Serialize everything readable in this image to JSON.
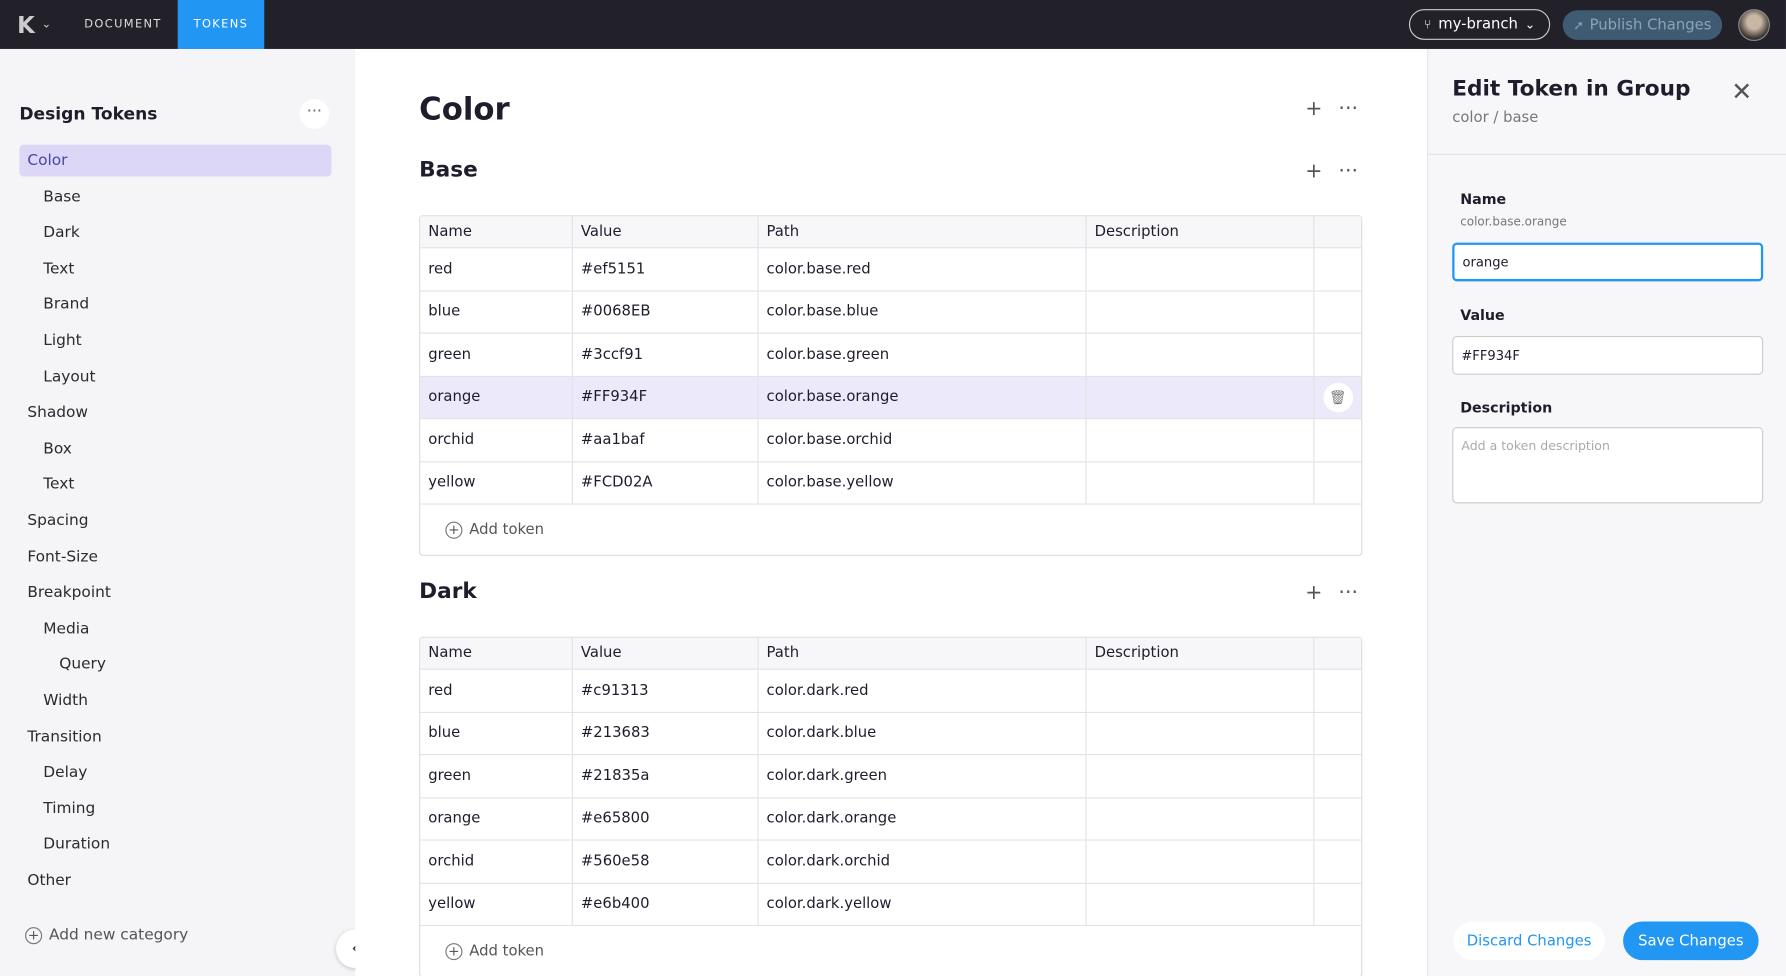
{
  "topbar": {
    "nav": [
      "DOCUMENT",
      "TOKENS"
    ],
    "active_tab": "TOKENS",
    "branch": "my-branch",
    "publish": "Publish Changes"
  },
  "sidebar": {
    "title": "Design Tokens",
    "more": "···",
    "add_category": "Add new category",
    "items": [
      {
        "label": "Color",
        "level": 0,
        "selected": true
      },
      {
        "label": "Base",
        "level": 1
      },
      {
        "label": "Dark",
        "level": 1
      },
      {
        "label": "Text",
        "level": 1
      },
      {
        "label": "Brand",
        "level": 1
      },
      {
        "label": "Light",
        "level": 1
      },
      {
        "label": "Layout",
        "level": 1
      },
      {
        "label": "Shadow",
        "level": 0
      },
      {
        "label": "Box",
        "level": 1
      },
      {
        "label": "Text",
        "level": 1
      },
      {
        "label": "Spacing",
        "level": 0
      },
      {
        "label": "Font-Size",
        "level": 0
      },
      {
        "label": "Breakpoint",
        "level": 0
      },
      {
        "label": "Media",
        "level": 1
      },
      {
        "label": "Query",
        "level": 2
      },
      {
        "label": "Width",
        "level": 1
      },
      {
        "label": "Transition",
        "level": 0
      },
      {
        "label": "Delay",
        "level": 1
      },
      {
        "label": "Timing",
        "level": 1
      },
      {
        "label": "Duration",
        "level": 1
      },
      {
        "label": "Other",
        "level": 0
      }
    ]
  },
  "main": {
    "title": "Color",
    "columns": [
      "Name",
      "Value",
      "Path",
      "Description"
    ],
    "add_token": "Add token",
    "groups": [
      {
        "title": "Base",
        "rows": [
          [
            "red",
            "#ef5151",
            "color.base.red",
            ""
          ],
          [
            "blue",
            "#0068EB",
            "color.base.blue",
            ""
          ],
          [
            "green",
            "#3ccf91",
            "color.base.green",
            ""
          ],
          [
            "orange",
            "#FF934F",
            "color.base.orange",
            ""
          ],
          [
            "orchid",
            "#aa1baf",
            "color.base.orchid",
            ""
          ],
          [
            "yellow",
            "#FCD02A",
            "color.base.yellow",
            ""
          ]
        ],
        "highlighted": 3
      },
      {
        "title": "Dark",
        "rows": [
          [
            "red",
            "#c91313",
            "color.dark.red",
            ""
          ],
          [
            "blue",
            "#213683",
            "color.dark.blue",
            ""
          ],
          [
            "green",
            "#21835a",
            "color.dark.green",
            ""
          ],
          [
            "orange",
            "#e65800",
            "color.dark.orange",
            ""
          ],
          [
            "orchid",
            "#560e58",
            "color.dark.orchid",
            ""
          ],
          [
            "yellow",
            "#e6b400",
            "color.dark.yellow",
            ""
          ]
        ]
      }
    ]
  },
  "panel": {
    "title": "Edit Token in Group",
    "subtitle": "color / base",
    "name_label": "Name",
    "name_hint": "color.base.orange",
    "name_value": "orange",
    "value_label": "Value",
    "value_value": "#FF934F",
    "desc_label": "Description",
    "desc_placeholder": "Add a token description",
    "discard": "Discard Changes",
    "save": "Save Changes"
  },
  "colors": {
    "accent": "#2196f3",
    "topbar": "#222028",
    "selected": "#dcd6f7"
  }
}
